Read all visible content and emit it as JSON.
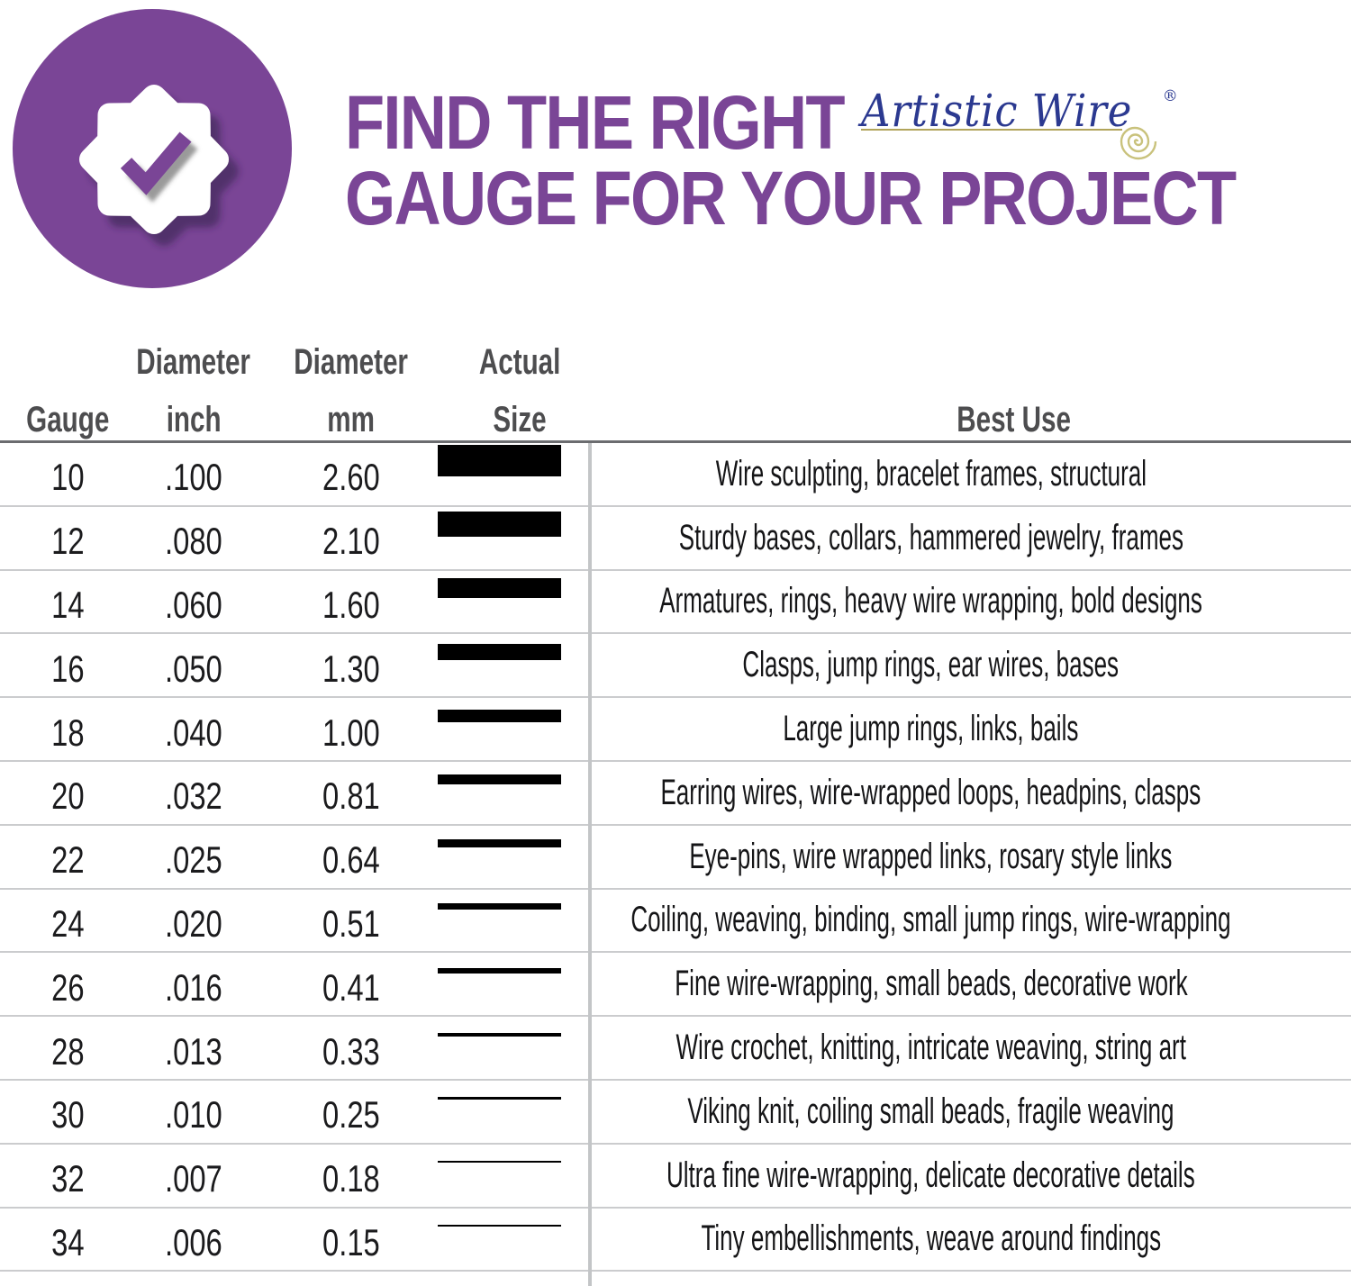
{
  "title": {
    "line1": "FIND THE RIGHT",
    "line2": "GAUGE FOR YOUR PROJECT"
  },
  "brand": {
    "name": "Artistic Wire",
    "registered_mark": "®"
  },
  "badge": {
    "icon": "check-seal-badge"
  },
  "table_headers": {
    "gauge": {
      "line1": "",
      "line2": "Gauge"
    },
    "inch": {
      "line1": "Diameter",
      "line2": "inch"
    },
    "mm": {
      "line1": "Diameter",
      "line2": "mm"
    },
    "size": {
      "line1": "Actual",
      "line2": "Size"
    },
    "best_use": {
      "line1": "",
      "line2": "Best Use"
    }
  },
  "chart_data": {
    "type": "table",
    "title": "Find the Right Gauge for Your Project",
    "columns": [
      "Gauge",
      "Diameter inch",
      "Diameter mm",
      "Actual Size",
      "Best Use"
    ],
    "rows": [
      {
        "gauge": "10",
        "diameter_inch": ".100",
        "diameter_mm": "2.60",
        "best_use": "Wire sculpting, bracelet frames, structural"
      },
      {
        "gauge": "12",
        "diameter_inch": ".080",
        "diameter_mm": "2.10",
        "best_use": "Sturdy bases, collars, hammered jewelry, frames"
      },
      {
        "gauge": "14",
        "diameter_inch": ".060",
        "diameter_mm": "1.60",
        "best_use": "Armatures, rings, heavy wire wrapping, bold designs"
      },
      {
        "gauge": "16",
        "diameter_inch": ".050",
        "diameter_mm": "1.30",
        "best_use": "Clasps, jump rings, ear wires, bases"
      },
      {
        "gauge": "18",
        "diameter_inch": ".040",
        "diameter_mm": "1.00",
        "best_use": "Large jump rings, links, bails"
      },
      {
        "gauge": "20",
        "diameter_inch": ".032",
        "diameter_mm": "0.81",
        "best_use": "Earring wires, wire-wrapped loops, headpins, clasps"
      },
      {
        "gauge": "22",
        "diameter_inch": ".025",
        "diameter_mm": "0.64",
        "best_use": "Eye-pins, wire wrapped links, rosary style links"
      },
      {
        "gauge": "24",
        "diameter_inch": ".020",
        "diameter_mm": "0.51",
        "best_use": "Coiling, weaving, binding, small jump rings, wire-wrapping"
      },
      {
        "gauge": "26",
        "diameter_inch": ".016",
        "diameter_mm": "0.41",
        "best_use": "Fine wire-wrapping, small beads, decorative work"
      },
      {
        "gauge": "28",
        "diameter_inch": ".013",
        "diameter_mm": "0.33",
        "best_use": "Wire crochet, knitting, intricate weaving, string art"
      },
      {
        "gauge": "30",
        "diameter_inch": ".010",
        "diameter_mm": "0.25",
        "best_use": "Viking knit, coiling small beads, fragile weaving"
      },
      {
        "gauge": "32",
        "diameter_inch": ".007",
        "diameter_mm": "0.18",
        "best_use": "Ultra fine wire-wrapping, delicate decorative details"
      },
      {
        "gauge": "34",
        "diameter_inch": ".006",
        "diameter_mm": "0.15",
        "best_use": "Tiny embellishments, weave around findings"
      }
    ],
    "actual_size_note": "bar height proportional to diameter in mm, constant bar width",
    "legend_position": "none",
    "grid": "horizontal row rules + vertical divider before Best Use column"
  },
  "colors": {
    "purple": "#7a4596",
    "brand_blue": "#2b3990",
    "gold": "#b1a45a",
    "spiral_gold": "#c9c27c",
    "bar_black": "#000000",
    "header_gray": "#4d4d4f",
    "row_line": "#cbccce",
    "head_rule": "#6b6c6f"
  }
}
